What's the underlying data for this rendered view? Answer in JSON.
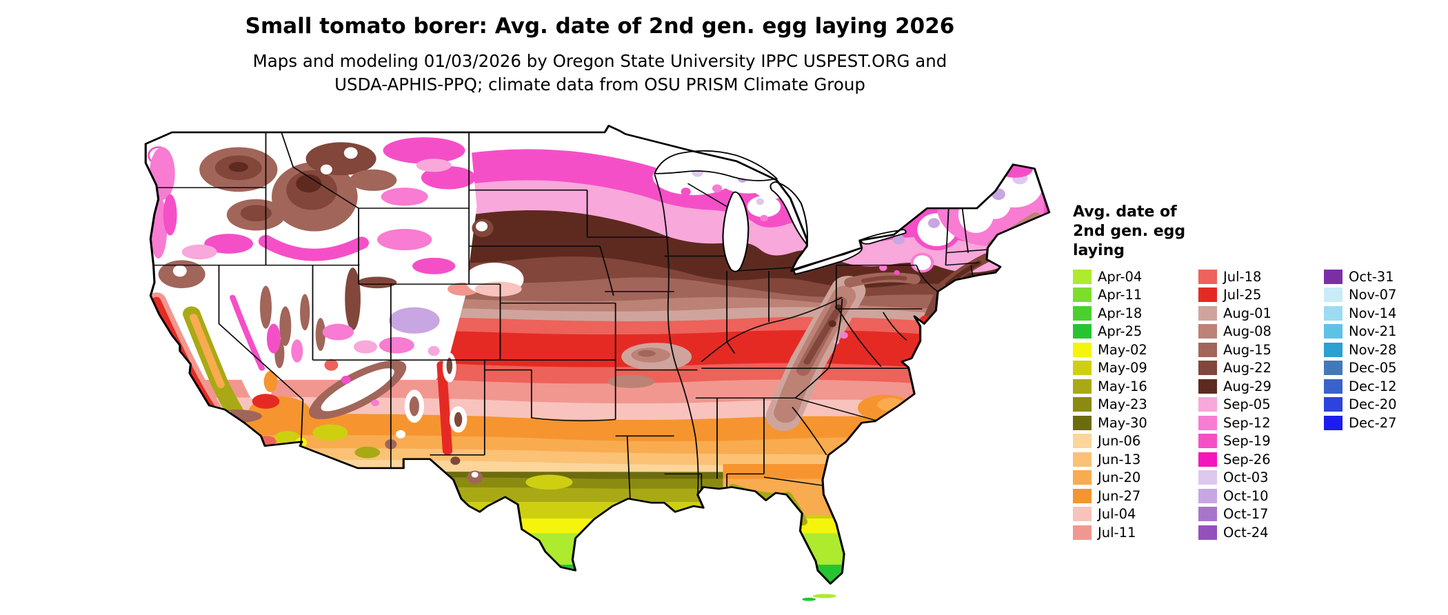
{
  "title": "Small tomato borer: Avg. date of 2nd gen. egg laying 2026",
  "subtitle": {
    "line1": "Maps and modeling 01/03/2026 by Oregon State University IPPC USPEST.ORG and",
    "line2": "USDA-APHIS-PPQ; climate data from OSU PRISM Climate Group"
  },
  "legend": {
    "title_line1": "Avg. date of",
    "title_line2": "2nd gen. egg",
    "title_line3": "laying",
    "columns": [
      [
        "Apr-04",
        "Apr-11",
        "Apr-18",
        "Apr-25",
        "May-02",
        "May-09",
        "May-16",
        "May-23",
        "May-30",
        "Jun-06",
        "Jun-13",
        "Jun-20",
        "Jun-27",
        "Jul-04",
        "Jul-11"
      ],
      [
        "Jul-18",
        "Jul-25",
        "Aug-01",
        "Aug-08",
        "Aug-15",
        "Aug-22",
        "Aug-29",
        "Sep-05",
        "Sep-12",
        "Sep-19",
        "Sep-26",
        "Oct-03",
        "Oct-10",
        "Oct-17",
        "Oct-24"
      ],
      [
        "Oct-31",
        "Nov-07",
        "Nov-14",
        "Nov-21",
        "Nov-28",
        "Dec-05",
        "Dec-12",
        "Dec-20",
        "Dec-27"
      ]
    ]
  },
  "palette": {
    "Apr-04": "#aeea2e",
    "Apr-11": "#7ddd2e",
    "Apr-18": "#4bd02f",
    "Apr-25": "#27c432",
    "May-02": "#f4f40c",
    "May-09": "#cfcf12",
    "May-16": "#a9a915",
    "May-23": "#8b8b12",
    "May-30": "#6c6c0e",
    "Jun-06": "#fcd59a",
    "Jun-13": "#fbc175",
    "Jun-20": "#f9ab50",
    "Jun-27": "#f6952f",
    "Jul-04": "#f8c3bd",
    "Jul-11": "#f29790",
    "Jul-18": "#ed625a",
    "Jul-25": "#e52a24",
    "Aug-01": "#cfa49c",
    "Aug-08": "#bc8276",
    "Aug-15": "#a1655a",
    "Aug-22": "#82463a",
    "Aug-29": "#5e2a20",
    "Sep-05": "#f8a8da",
    "Sep-12": "#f77cd2",
    "Sep-19": "#f54fc8",
    "Sep-26": "#f516bd",
    "Oct-03": "#ddc8ee",
    "Oct-10": "#c8a6e2",
    "Oct-17": "#a875cd",
    "Oct-24": "#9450bd",
    "Oct-31": "#7b2fa5",
    "Nov-07": "#c9ecf8",
    "Nov-14": "#9bdcf2",
    "Nov-21": "#5ec2e6",
    "Nov-28": "#2ba0d2",
    "Dec-05": "#4479b8",
    "Dec-12": "#3a62cd",
    "Dec-20": "#2c43de",
    "Dec-27": "#1c1cf0"
  }
}
